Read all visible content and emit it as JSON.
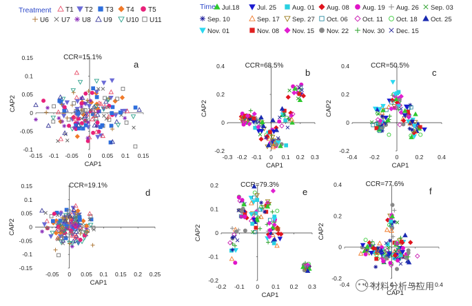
{
  "legends": {
    "treatment": {
      "title": "Treatment",
      "entries": [
        {
          "label": "T1",
          "color": "#e8506a",
          "marker": "tri-up-open"
        },
        {
          "label": "T2",
          "color": "#6b6bd6",
          "marker": "tri-down"
        },
        {
          "label": "T3",
          "color": "#2f6fdc",
          "marker": "square"
        },
        {
          "label": "T4",
          "color": "#f07a2a",
          "marker": "diamond"
        },
        {
          "label": "T5",
          "color": "#e8217a",
          "marker": "circle"
        },
        {
          "label": "U6",
          "color": "#b07a3a",
          "marker": "plus"
        },
        {
          "label": "U7",
          "color": "#6b6b6b",
          "marker": "x"
        },
        {
          "label": "U8",
          "color": "#8a2bb8",
          "marker": "star"
        },
        {
          "label": "U9",
          "color": "#3a3a9a",
          "marker": "tri-up-open"
        },
        {
          "label": "U10",
          "color": "#2aa08a",
          "marker": "tri-down-open"
        },
        {
          "label": "U11",
          "color": "#777777",
          "marker": "square-open"
        }
      ]
    },
    "time": {
      "title": "Time",
      "entries": [
        {
          "label": "Jul.18",
          "color": "#2ec82e",
          "marker": "tri-up"
        },
        {
          "label": "Jul. 25",
          "color": "#1a1ad0",
          "marker": "tri-down"
        },
        {
          "label": "Aug. 01",
          "color": "#2ad0e0",
          "marker": "square"
        },
        {
          "label": "Aug. 08",
          "color": "#e0141e",
          "marker": "diamond"
        },
        {
          "label": "Aug. 19",
          "color": "#e014c8",
          "marker": "circle"
        },
        {
          "label": "Aug. 26",
          "color": "#8a8a8a",
          "marker": "plus"
        },
        {
          "label": "Sep. 03",
          "color": "#2aa02a",
          "marker": "x"
        },
        {
          "label": "Sep. 10",
          "color": "#1a1a9a",
          "marker": "star"
        },
        {
          "label": "Sep. 17",
          "color": "#f07a2a",
          "marker": "tri-up-open"
        },
        {
          "label": "Sep. 27",
          "color": "#9a7a1a",
          "marker": "tri-down-open"
        },
        {
          "label": "Oct. 06",
          "color": "#2a8aa0",
          "marker": "square-open"
        },
        {
          "label": "Oct. 11",
          "color": "#c81ab0",
          "marker": "diamond-open"
        },
        {
          "label": "Oct. 18",
          "color": "#3acb3a",
          "marker": "circle-open"
        },
        {
          "label": "Oct. 25",
          "color": "#1a2ab0",
          "marker": "tri-up"
        },
        {
          "label": "Nov. 01",
          "color": "#2ad8f0",
          "marker": "tri-down"
        },
        {
          "label": "Nov. 08",
          "color": "#e02020",
          "marker": "square"
        },
        {
          "label": "Nov. 15",
          "color": "#e020d0",
          "marker": "diamond"
        },
        {
          "label": "Nov. 22",
          "color": "#888888",
          "marker": "circle"
        },
        {
          "label": "Nov. 30",
          "color": "#2aa02a",
          "marker": "plus"
        },
        {
          "label": "Dec. 15",
          "color": "#2a2a9a",
          "marker": "x"
        }
      ]
    }
  },
  "chart_data": [
    {
      "id": "a",
      "type": "scatter",
      "panel_label": "a",
      "annotation": "CCR=15.1%",
      "xlabel": "CAP1",
      "ylabel": "CAP2",
      "xlim": [
        -0.15,
        0.15
      ],
      "ylim": [
        -0.1,
        0.15
      ],
      "xticks": [
        "-0.15",
        "-0.1",
        "-0.05",
        "0",
        "0.05",
        "0.1",
        "0.15"
      ],
      "xtick_values": [
        -0.15,
        -0.1,
        -0.05,
        0,
        0.05,
        0.1,
        0.15
      ],
      "yticks": [
        "0.15",
        "0.1",
        "0.05",
        "0",
        "-0.05",
        "-0.1"
      ],
      "ytick_values": [
        0.15,
        0.1,
        0.05,
        0,
        -0.05,
        -0.1
      ],
      "legend_ref": "treatment",
      "point_count": 190,
      "seed": 11,
      "clusters": [
        {
          "cx": 0.0,
          "cy": 0.0,
          "sx": 0.055,
          "sy": 0.035
        }
      ]
    },
    {
      "id": "b",
      "type": "scatter",
      "panel_label": "b",
      "annotation": "CCR=68.5%",
      "xlabel": "CAP1",
      "ylabel": "CAP2",
      "xlim": [
        -0.3,
        0.3
      ],
      "ylim": [
        -0.2,
        0.4
      ],
      "xticks": [
        "-0.3",
        "-0.2",
        "-0.1",
        "0",
        "0.1",
        "0.2",
        "0.3"
      ],
      "xtick_values": [
        -0.3,
        -0.2,
        -0.1,
        0,
        0.1,
        0.2,
        0.3
      ],
      "yticks": [
        "0.4",
        "0.2",
        "0",
        "-0.2"
      ],
      "ytick_values": [
        0.4,
        0.2,
        0,
        -0.2
      ],
      "legend_ref": "time",
      "point_count": 140,
      "seed": 23,
      "clusters": [
        {
          "cx": -0.15,
          "cy": 0.03,
          "sx": 0.03,
          "sy": 0.02
        },
        {
          "cx": -0.08,
          "cy": -0.02,
          "sx": 0.03,
          "sy": 0.03
        },
        {
          "cx": -0.02,
          "cy": -0.08,
          "sx": 0.03,
          "sy": 0.03
        },
        {
          "cx": 0.03,
          "cy": -0.15,
          "sx": 0.025,
          "sy": 0.02
        },
        {
          "cx": 0.1,
          "cy": 0.05,
          "sx": 0.03,
          "sy": 0.04
        },
        {
          "cx": 0.17,
          "cy": 0.22,
          "sx": 0.025,
          "sy": 0.04
        }
      ]
    },
    {
      "id": "c",
      "type": "scatter",
      "panel_label": "c",
      "annotation": "CCR=50.5%",
      "xlabel": "CAP1",
      "ylabel": "CAP2",
      "xlim": [
        -0.4,
        0.4
      ],
      "ylim": [
        -0.2,
        0.4
      ],
      "xticks": [
        "-0.4",
        "-0.2",
        "0",
        "0.2",
        "0.4"
      ],
      "xtick_values": [
        -0.4,
        -0.2,
        0,
        0.2,
        0.4
      ],
      "yticks": [
        "0.4",
        "0.2",
        "0",
        "-0.2"
      ],
      "ytick_values": [
        0.4,
        0.2,
        0,
        -0.2
      ],
      "legend_ref": "time",
      "point_count": 140,
      "seed": 37,
      "clusters": [
        {
          "cx": -0.12,
          "cy": 0.05,
          "sx": 0.04,
          "sy": 0.05
        },
        {
          "cx": 0.0,
          "cy": 0.15,
          "sx": 0.03,
          "sy": 0.05
        },
        {
          "cx": 0.1,
          "cy": 0.05,
          "sx": 0.04,
          "sy": 0.05
        },
        {
          "cx": 0.17,
          "cy": -0.03,
          "sx": 0.03,
          "sy": 0.03
        },
        {
          "cx": -0.15,
          "cy": -0.02,
          "sx": 0.03,
          "sy": 0.03
        }
      ]
    },
    {
      "id": "d",
      "type": "scatter",
      "panel_label": "d",
      "annotation": "CCR=19.1%",
      "xlabel": "CAP1",
      "ylabel": "CAP2",
      "xlim": [
        -0.1,
        0.25
      ],
      "ylim": [
        -0.15,
        0.15
      ],
      "xticks": [
        "-0.05",
        "0",
        "0.05",
        "0.1",
        "0.15",
        "0.2",
        "0.25"
      ],
      "xtick_values": [
        -0.05,
        0,
        0.05,
        0.1,
        0.15,
        0.2,
        0.25
      ],
      "yticks": [
        "0.15",
        "0.1",
        "0.05",
        "0",
        "-0.05",
        "-0.1",
        "-0.15"
      ],
      "ytick_values": [
        0.15,
        0.1,
        0.05,
        0,
        -0.05,
        -0.1,
        -0.15
      ],
      "legend_ref": "treatment",
      "point_count": 200,
      "seed": 53,
      "clusters": [
        {
          "cx": 0.0,
          "cy": 0.0,
          "sx": 0.03,
          "sy": 0.03
        }
      ]
    },
    {
      "id": "e",
      "type": "scatter",
      "panel_label": "e",
      "annotation": "CCR=79.3%",
      "xlabel": "CAP1",
      "ylabel": "CAP2",
      "xlim": [
        -0.2,
        0.3
      ],
      "ylim": [
        -0.2,
        0.2
      ],
      "xticks": [
        "-0.2",
        "-0.1",
        "0",
        "0.1",
        "0.2",
        "0.3"
      ],
      "xtick_values": [
        -0.2,
        -0.1,
        0,
        0.1,
        0.2,
        0.3
      ],
      "yticks": [
        "0.2",
        "0.1",
        "0",
        "-0.1",
        "-0.2"
      ],
      "ytick_values": [
        0.2,
        0.1,
        0,
        -0.1,
        -0.2
      ],
      "legend_ref": "time",
      "point_count": 140,
      "seed": 71,
      "clusters": [
        {
          "cx": -0.13,
          "cy": -0.05,
          "sx": 0.01,
          "sy": 0.05
        },
        {
          "cx": -0.08,
          "cy": 0.1,
          "sx": 0.02,
          "sy": 0.03
        },
        {
          "cx": -0.02,
          "cy": 0.08,
          "sx": 0.02,
          "sy": 0.04
        },
        {
          "cx": 0.04,
          "cy": 0.1,
          "sx": 0.03,
          "sy": 0.03
        },
        {
          "cx": 0.09,
          "cy": 0.02,
          "sx": 0.02,
          "sy": 0.03
        },
        {
          "cx": 0.27,
          "cy": -0.14,
          "sx": 0.01,
          "sy": 0.01
        }
      ]
    },
    {
      "id": "f",
      "type": "scatter",
      "panel_label": "f",
      "annotation": "CCR=77.6%",
      "xlabel": "CAP1",
      "ylabel": "CAP2",
      "xlim": [
        -0.4,
        0.4
      ],
      "ylim": [
        -0.2,
        0.4
      ],
      "xticks": [
        "-0.4",
        "-0.2",
        "0",
        "0.2",
        "0.4"
      ],
      "xtick_values": [
        -0.4,
        -0.2,
        0,
        0.2,
        0.4
      ],
      "yticks": [
        "0.4",
        "0.2",
        "0",
        "-0.2"
      ],
      "ytick_values": [
        0.4,
        0.2,
        0,
        -0.2
      ],
      "legend_ref": "time",
      "point_count": 150,
      "seed": 97,
      "clusters": [
        {
          "cx": -0.18,
          "cy": 0.0,
          "sx": 0.05,
          "sy": 0.03
        },
        {
          "cx": -0.05,
          "cy": -0.05,
          "sx": 0.05,
          "sy": 0.04
        },
        {
          "cx": 0.05,
          "cy": 0.0,
          "sx": 0.04,
          "sy": 0.04
        },
        {
          "cx": 0.0,
          "cy": 0.18,
          "sx": 0.02,
          "sy": 0.05
        },
        {
          "cx": 0.1,
          "cy": -0.05,
          "sx": 0.04,
          "sy": 0.05
        }
      ]
    }
  ],
  "watermark": {
    "text": "材料分析与应用"
  }
}
